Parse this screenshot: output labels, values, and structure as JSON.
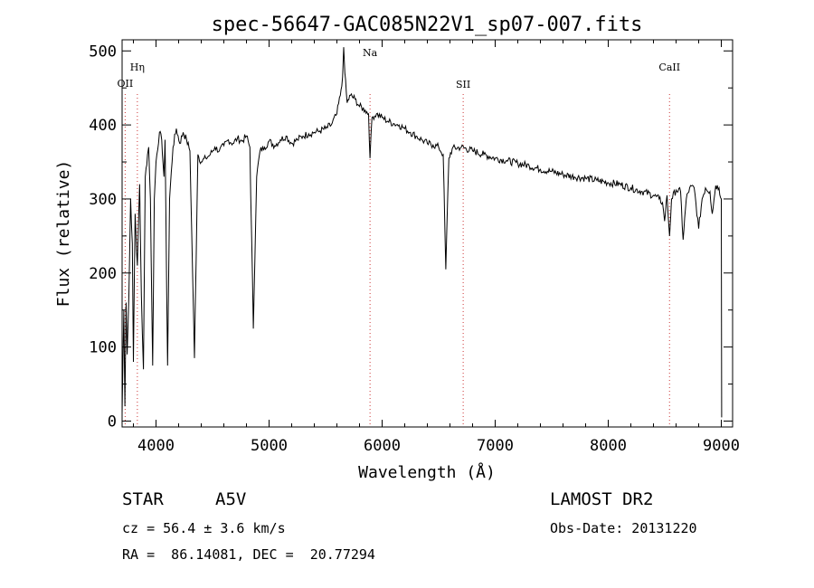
{
  "chart_data": {
    "type": "line",
    "title": "spec-56647-GAC085N22V1_sp07-007.fits",
    "xlabel": "Wavelength (Å)",
    "ylabel": "Flux (relative)",
    "xlim": [
      3700,
      9100
    ],
    "ylim": [
      -8,
      515
    ],
    "xticks": [
      4000,
      5000,
      6000,
      7000,
      8000,
      9000
    ],
    "yticks": [
      0,
      100,
      200,
      300,
      400,
      500
    ],
    "grid": false,
    "series": [
      {
        "color": "#000000",
        "points": [
          [
            3700,
            10
          ],
          [
            3715,
            150
          ],
          [
            3725,
            20
          ],
          [
            3735,
            160
          ],
          [
            3745,
            90
          ],
          [
            3760,
            170
          ],
          [
            3775,
            300
          ],
          [
            3790,
            240
          ],
          [
            3800,
            80
          ],
          [
            3815,
            280
          ],
          [
            3835,
            210
          ],
          [
            3855,
            320
          ],
          [
            3870,
            170
          ],
          [
            3889,
            70
          ],
          [
            3905,
            330
          ],
          [
            3925,
            360
          ],
          [
            3935,
            370
          ],
          [
            3950,
            300
          ],
          [
            3970,
            75
          ],
          [
            3985,
            300
          ],
          [
            4000,
            350
          ],
          [
            4030,
            390
          ],
          [
            4050,
            380
          ],
          [
            4070,
            330
          ],
          [
            4080,
            380
          ],
          [
            4102,
            75
          ],
          [
            4120,
            300
          ],
          [
            4150,
            370
          ],
          [
            4180,
            395
          ],
          [
            4210,
            375
          ],
          [
            4240,
            390
          ],
          [
            4270,
            380
          ],
          [
            4300,
            365
          ],
          [
            4340,
            85
          ],
          [
            4370,
            360
          ],
          [
            4400,
            350
          ],
          [
            4440,
            355
          ],
          [
            4480,
            360
          ],
          [
            4520,
            370
          ],
          [
            4560,
            365
          ],
          [
            4600,
            372
          ],
          [
            4640,
            380
          ],
          [
            4680,
            375
          ],
          [
            4720,
            382
          ],
          [
            4760,
            378
          ],
          [
            4800,
            385
          ],
          [
            4830,
            370
          ],
          [
            4861,
            125
          ],
          [
            4890,
            330
          ],
          [
            4920,
            365
          ],
          [
            4960,
            370
          ],
          [
            5000,
            378
          ],
          [
            5050,
            372
          ],
          [
            5100,
            380
          ],
          [
            5150,
            385
          ],
          [
            5200,
            375
          ],
          [
            5250,
            380
          ],
          [
            5300,
            385
          ],
          [
            5350,
            388
          ],
          [
            5400,
            390
          ],
          [
            5450,
            392
          ],
          [
            5500,
            395
          ],
          [
            5550,
            400
          ],
          [
            5600,
            415
          ],
          [
            5630,
            440
          ],
          [
            5650,
            465
          ],
          [
            5660,
            505
          ],
          [
            5670,
            470
          ],
          [
            5690,
            430
          ],
          [
            5720,
            440
          ],
          [
            5760,
            435
          ],
          [
            5800,
            425
          ],
          [
            5850,
            420
          ],
          [
            5880,
            415
          ],
          [
            5893,
            355
          ],
          [
            5910,
            410
          ],
          [
            5950,
            415
          ],
          [
            6000,
            410
          ],
          [
            6050,
            405
          ],
          [
            6100,
            402
          ],
          [
            6150,
            400
          ],
          [
            6200,
            395
          ],
          [
            6250,
            390
          ],
          [
            6300,
            385
          ],
          [
            6350,
            380
          ],
          [
            6400,
            375
          ],
          [
            6450,
            373
          ],
          [
            6500,
            370
          ],
          [
            6540,
            360
          ],
          [
            6563,
            205
          ],
          [
            6590,
            355
          ],
          [
            6620,
            368
          ],
          [
            6700,
            370
          ],
          [
            6800,
            365
          ],
          [
            6900,
            360
          ],
          [
            7000,
            355
          ],
          [
            7100,
            352
          ],
          [
            7200,
            348
          ],
          [
            7300,
            345
          ],
          [
            7400,
            340
          ],
          [
            7500,
            337
          ],
          [
            7600,
            333
          ],
          [
            7700,
            330
          ],
          [
            7800,
            328
          ],
          [
            7900,
            325
          ],
          [
            8000,
            322
          ],
          [
            8100,
            320
          ],
          [
            8200,
            315
          ],
          [
            8300,
            310
          ],
          [
            8400,
            305
          ],
          [
            8450,
            300
          ],
          [
            8480,
            295
          ],
          [
            8498,
            270
          ],
          [
            8520,
            305
          ],
          [
            8542,
            250
          ],
          [
            8560,
            300
          ],
          [
            8600,
            312
          ],
          [
            8640,
            310
          ],
          [
            8662,
            245
          ],
          [
            8690,
            300
          ],
          [
            8720,
            315
          ],
          [
            8760,
            315
          ],
          [
            8800,
            260
          ],
          [
            8830,
            300
          ],
          [
            8860,
            315
          ],
          [
            8900,
            310
          ],
          [
            8920,
            280
          ],
          [
            8950,
            318
          ],
          [
            8980,
            315
          ],
          [
            9000,
            300
          ],
          [
            9003,
            5
          ]
        ]
      }
    ],
    "lines": [
      {
        "label": "OII",
        "x": 3727
      },
      {
        "label": "Hη",
        "x": 3835
      },
      {
        "label": "Na",
        "x": 5893
      },
      {
        "label": "SII",
        "x": 6717
      },
      {
        "label": "CaII",
        "x": 8542
      }
    ]
  },
  "info": {
    "object_type": "STAR",
    "subclass": "A5V",
    "survey": "LAMOST DR2",
    "redshift": "cz = 56.4 ± 3.6 km/s",
    "obs_date": "Obs-Date: 20131220",
    "coords": "RA =  86.14081, DEC =  20.77294"
  }
}
